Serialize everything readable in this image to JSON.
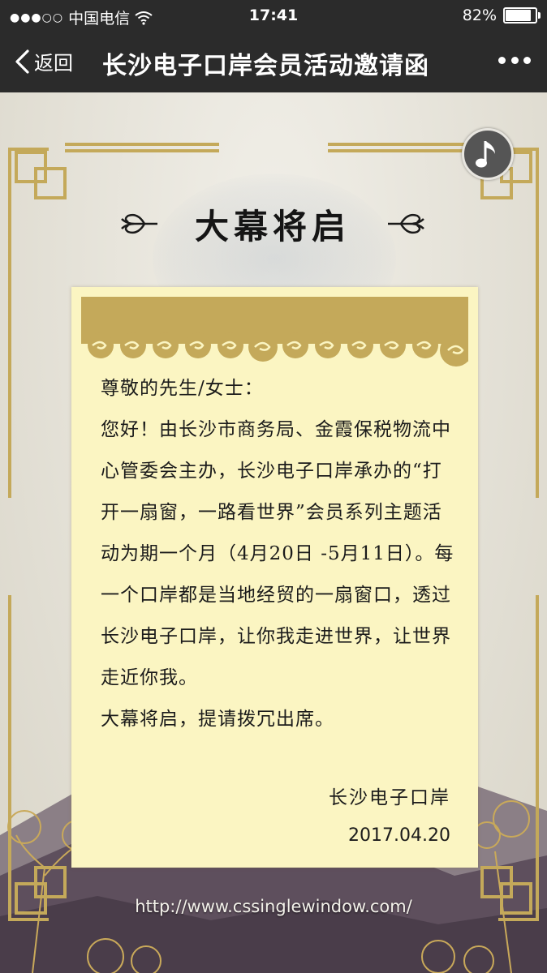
{
  "status_bar": {
    "carrier": "中国电信",
    "time": "17:41",
    "battery_text": "82%",
    "battery_level": 0.82
  },
  "nav": {
    "back_label": "返回",
    "title": "长沙电子口岸会员活动邀请函",
    "back_icon": "chevron-left-icon",
    "more_icon": "more-dots-icon"
  },
  "page": {
    "music_icon": "music-note-icon",
    "heading": "大幕将启",
    "greeting": "尊敬的先生/女士：",
    "paragraph1": "您好！由长沙市商务局、金霞保税物流中心管委会主办，长沙电子口岸承办的“打开一扇窗，一路看世界”会员系列主题活动为期一个月（4月20日 -5月11日）。每一个口岸都是当地经贸的一扇窗口，透过长沙电子口岸，让你我走进世界，让世界走近你我。",
    "paragraph2": "大幕将启，提请拨冗出席。",
    "signature": "长沙电子口岸",
    "date": "2017.04.20",
    "url": "http://www.cssinglewindow.com/"
  },
  "colors": {
    "gold": "#c4a95a",
    "paper": "#fbf5c2",
    "bar": "#2b2b2b",
    "mountain": "#4a3d4a"
  }
}
